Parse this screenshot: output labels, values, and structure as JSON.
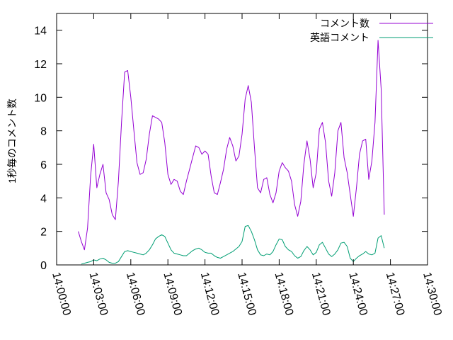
{
  "chart_data": {
    "type": "line",
    "ylabel": "1秒毎のコメント数",
    "xlabel": "",
    "ylim": [
      0,
      15
    ],
    "yticks": [
      0,
      2,
      4,
      6,
      8,
      10,
      12,
      14
    ],
    "x_minutes_range": [
      0,
      30
    ],
    "xticks": [
      "14:00:00",
      "14:03:00",
      "14:06:00",
      "14:09:00",
      "14:12:00",
      "14:15:00",
      "14:18:00",
      "14:21:00",
      "14:24:00",
      "14:27:00",
      "14:30:00"
    ],
    "legend_position": "top-right",
    "grid": false,
    "series": [
      {
        "name": "コメント数",
        "color": "#9400d3",
        "points": [
          [
            "14:01:45",
            2.0
          ],
          [
            "14:02:00",
            1.4
          ],
          [
            "14:02:15",
            0.9
          ],
          [
            "14:02:30",
            2.2
          ],
          [
            "14:02:45",
            5.3
          ],
          [
            "14:03:00",
            7.2
          ],
          [
            "14:03:15",
            4.6
          ],
          [
            "14:03:30",
            5.4
          ],
          [
            "14:03:45",
            6.0
          ],
          [
            "14:04:00",
            4.3
          ],
          [
            "14:04:15",
            3.9
          ],
          [
            "14:04:30",
            3.0
          ],
          [
            "14:04:45",
            2.7
          ],
          [
            "14:05:00",
            5.0
          ],
          [
            "14:05:15",
            8.5
          ],
          [
            "14:05:30",
            11.5
          ],
          [
            "14:05:45",
            11.6
          ],
          [
            "14:06:00",
            10.0
          ],
          [
            "14:06:15",
            8.0
          ],
          [
            "14:06:30",
            6.1
          ],
          [
            "14:06:45",
            5.4
          ],
          [
            "14:07:00",
            5.5
          ],
          [
            "14:07:15",
            6.3
          ],
          [
            "14:07:30",
            7.8
          ],
          [
            "14:07:45",
            8.9
          ],
          [
            "14:08:00",
            8.8
          ],
          [
            "14:08:15",
            8.7
          ],
          [
            "14:08:30",
            8.5
          ],
          [
            "14:08:45",
            7.3
          ],
          [
            "14:09:00",
            5.4
          ],
          [
            "14:09:15",
            4.8
          ],
          [
            "14:09:30",
            5.1
          ],
          [
            "14:09:45",
            5.0
          ],
          [
            "14:10:00",
            4.4
          ],
          [
            "14:10:15",
            4.2
          ],
          [
            "14:10:30",
            5.0
          ],
          [
            "14:10:45",
            5.7
          ],
          [
            "14:11:00",
            6.4
          ],
          [
            "14:11:15",
            7.1
          ],
          [
            "14:11:30",
            7.0
          ],
          [
            "14:11:45",
            6.6
          ],
          [
            "14:12:00",
            6.8
          ],
          [
            "14:12:15",
            6.6
          ],
          [
            "14:12:30",
            5.3
          ],
          [
            "14:12:45",
            4.3
          ],
          [
            "14:13:00",
            4.2
          ],
          [
            "14:13:15",
            4.9
          ],
          [
            "14:13:30",
            5.7
          ],
          [
            "14:13:45",
            6.9
          ],
          [
            "14:14:00",
            7.6
          ],
          [
            "14:14:15",
            7.1
          ],
          [
            "14:14:30",
            6.2
          ],
          [
            "14:14:45",
            6.5
          ],
          [
            "14:15:00",
            7.8
          ],
          [
            "14:15:15",
            9.9
          ],
          [
            "14:15:30",
            10.7
          ],
          [
            "14:15:45",
            9.7
          ],
          [
            "14:16:00",
            7.0
          ],
          [
            "14:16:15",
            4.6
          ],
          [
            "14:16:30",
            4.3
          ],
          [
            "14:16:45",
            5.1
          ],
          [
            "14:17:00",
            5.2
          ],
          [
            "14:17:15",
            4.2
          ],
          [
            "14:17:30",
            3.7
          ],
          [
            "14:17:45",
            4.3
          ],
          [
            "14:18:00",
            5.6
          ],
          [
            "14:18:15",
            6.1
          ],
          [
            "14:18:30",
            5.8
          ],
          [
            "14:18:45",
            5.6
          ],
          [
            "14:19:00",
            5.0
          ],
          [
            "14:19:15",
            3.6
          ],
          [
            "14:19:30",
            2.9
          ],
          [
            "14:19:45",
            3.8
          ],
          [
            "14:20:00",
            6.0
          ],
          [
            "14:20:15",
            7.4
          ],
          [
            "14:20:30",
            6.3
          ],
          [
            "14:20:45",
            4.6
          ],
          [
            "14:21:00",
            5.5
          ],
          [
            "14:21:15",
            8.1
          ],
          [
            "14:21:30",
            8.5
          ],
          [
            "14:21:45",
            7.3
          ],
          [
            "14:22:00",
            5.0
          ],
          [
            "14:22:15",
            4.1
          ],
          [
            "14:22:30",
            5.5
          ],
          [
            "14:22:45",
            8.0
          ],
          [
            "14:23:00",
            8.5
          ],
          [
            "14:23:15",
            6.4
          ],
          [
            "14:23:30",
            5.5
          ],
          [
            "14:23:45",
            4.2
          ],
          [
            "14:24:00",
            2.9
          ],
          [
            "14:24:15",
            4.6
          ],
          [
            "14:24:30",
            6.6
          ],
          [
            "14:24:45",
            7.4
          ],
          [
            "14:25:00",
            7.5
          ],
          [
            "14:25:15",
            5.1
          ],
          [
            "14:25:30",
            6.2
          ],
          [
            "14:25:45",
            8.5
          ],
          [
            "14:26:00",
            13.4
          ],
          [
            "14:26:15",
            10.5
          ],
          [
            "14:26:30",
            3.0
          ]
        ]
      },
      {
        "name": "英語コメント",
        "color": "#009e73",
        "points": [
          [
            "14:02:00",
            0.05
          ],
          [
            "14:02:15",
            0.1
          ],
          [
            "14:02:30",
            0.15
          ],
          [
            "14:02:45",
            0.2
          ],
          [
            "14:03:00",
            0.3
          ],
          [
            "14:03:15",
            0.25
          ],
          [
            "14:03:30",
            0.35
          ],
          [
            "14:03:45",
            0.4
          ],
          [
            "14:04:00",
            0.3
          ],
          [
            "14:04:15",
            0.15
          ],
          [
            "14:04:30",
            0.1
          ],
          [
            "14:04:45",
            0.1
          ],
          [
            "14:05:00",
            0.2
          ],
          [
            "14:05:15",
            0.5
          ],
          [
            "14:05:30",
            0.8
          ],
          [
            "14:05:45",
            0.85
          ],
          [
            "14:06:00",
            0.8
          ],
          [
            "14:06:15",
            0.75
          ],
          [
            "14:06:30",
            0.7
          ],
          [
            "14:06:45",
            0.65
          ],
          [
            "14:07:00",
            0.6
          ],
          [
            "14:07:15",
            0.7
          ],
          [
            "14:07:30",
            0.9
          ],
          [
            "14:07:45",
            1.2
          ],
          [
            "14:08:00",
            1.55
          ],
          [
            "14:08:15",
            1.7
          ],
          [
            "14:08:30",
            1.8
          ],
          [
            "14:08:45",
            1.7
          ],
          [
            "14:09:00",
            1.3
          ],
          [
            "14:09:15",
            0.9
          ],
          [
            "14:09:30",
            0.7
          ],
          [
            "14:09:45",
            0.65
          ],
          [
            "14:10:00",
            0.6
          ],
          [
            "14:10:15",
            0.55
          ],
          [
            "14:10:30",
            0.55
          ],
          [
            "14:10:45",
            0.7
          ],
          [
            "14:11:00",
            0.85
          ],
          [
            "14:11:15",
            0.95
          ],
          [
            "14:11:30",
            1.0
          ],
          [
            "14:11:45",
            0.9
          ],
          [
            "14:12:00",
            0.75
          ],
          [
            "14:12:15",
            0.7
          ],
          [
            "14:12:30",
            0.7
          ],
          [
            "14:12:45",
            0.55
          ],
          [
            "14:13:00",
            0.45
          ],
          [
            "14:13:15",
            0.4
          ],
          [
            "14:13:30",
            0.5
          ],
          [
            "14:13:45",
            0.6
          ],
          [
            "14:14:00",
            0.7
          ],
          [
            "14:14:15",
            0.8
          ],
          [
            "14:14:30",
            0.95
          ],
          [
            "14:14:45",
            1.1
          ],
          [
            "14:15:00",
            1.4
          ],
          [
            "14:15:15",
            2.3
          ],
          [
            "14:15:30",
            2.35
          ],
          [
            "14:15:45",
            2.0
          ],
          [
            "14:16:00",
            1.5
          ],
          [
            "14:16:15",
            0.9
          ],
          [
            "14:16:30",
            0.6
          ],
          [
            "14:16:45",
            0.55
          ],
          [
            "14:17:00",
            0.65
          ],
          [
            "14:17:15",
            0.6
          ],
          [
            "14:17:30",
            0.8
          ],
          [
            "14:17:45",
            1.2
          ],
          [
            "14:18:00",
            1.55
          ],
          [
            "14:18:15",
            1.5
          ],
          [
            "14:18:30",
            1.1
          ],
          [
            "14:18:45",
            0.9
          ],
          [
            "14:19:00",
            0.8
          ],
          [
            "14:19:15",
            0.55
          ],
          [
            "14:19:30",
            0.4
          ],
          [
            "14:19:45",
            0.5
          ],
          [
            "14:20:00",
            0.85
          ],
          [
            "14:20:15",
            1.1
          ],
          [
            "14:20:30",
            0.9
          ],
          [
            "14:20:45",
            0.6
          ],
          [
            "14:21:00",
            0.75
          ],
          [
            "14:21:15",
            1.2
          ],
          [
            "14:21:30",
            1.35
          ],
          [
            "14:21:45",
            1.0
          ],
          [
            "14:22:00",
            0.65
          ],
          [
            "14:22:15",
            0.5
          ],
          [
            "14:22:30",
            0.65
          ],
          [
            "14:22:45",
            0.9
          ],
          [
            "14:23:00",
            1.3
          ],
          [
            "14:23:15",
            1.35
          ],
          [
            "14:23:30",
            1.1
          ],
          [
            "14:23:45",
            0.4
          ],
          [
            "14:24:00",
            0.2
          ],
          [
            "14:24:15",
            0.4
          ],
          [
            "14:24:30",
            0.55
          ],
          [
            "14:24:45",
            0.65
          ],
          [
            "14:25:00",
            0.8
          ],
          [
            "14:25:15",
            0.65
          ],
          [
            "14:25:30",
            0.6
          ],
          [
            "14:25:45",
            0.7
          ],
          [
            "14:26:00",
            1.6
          ],
          [
            "14:26:15",
            1.75
          ],
          [
            "14:26:30",
            1.0
          ]
        ]
      }
    ]
  }
}
